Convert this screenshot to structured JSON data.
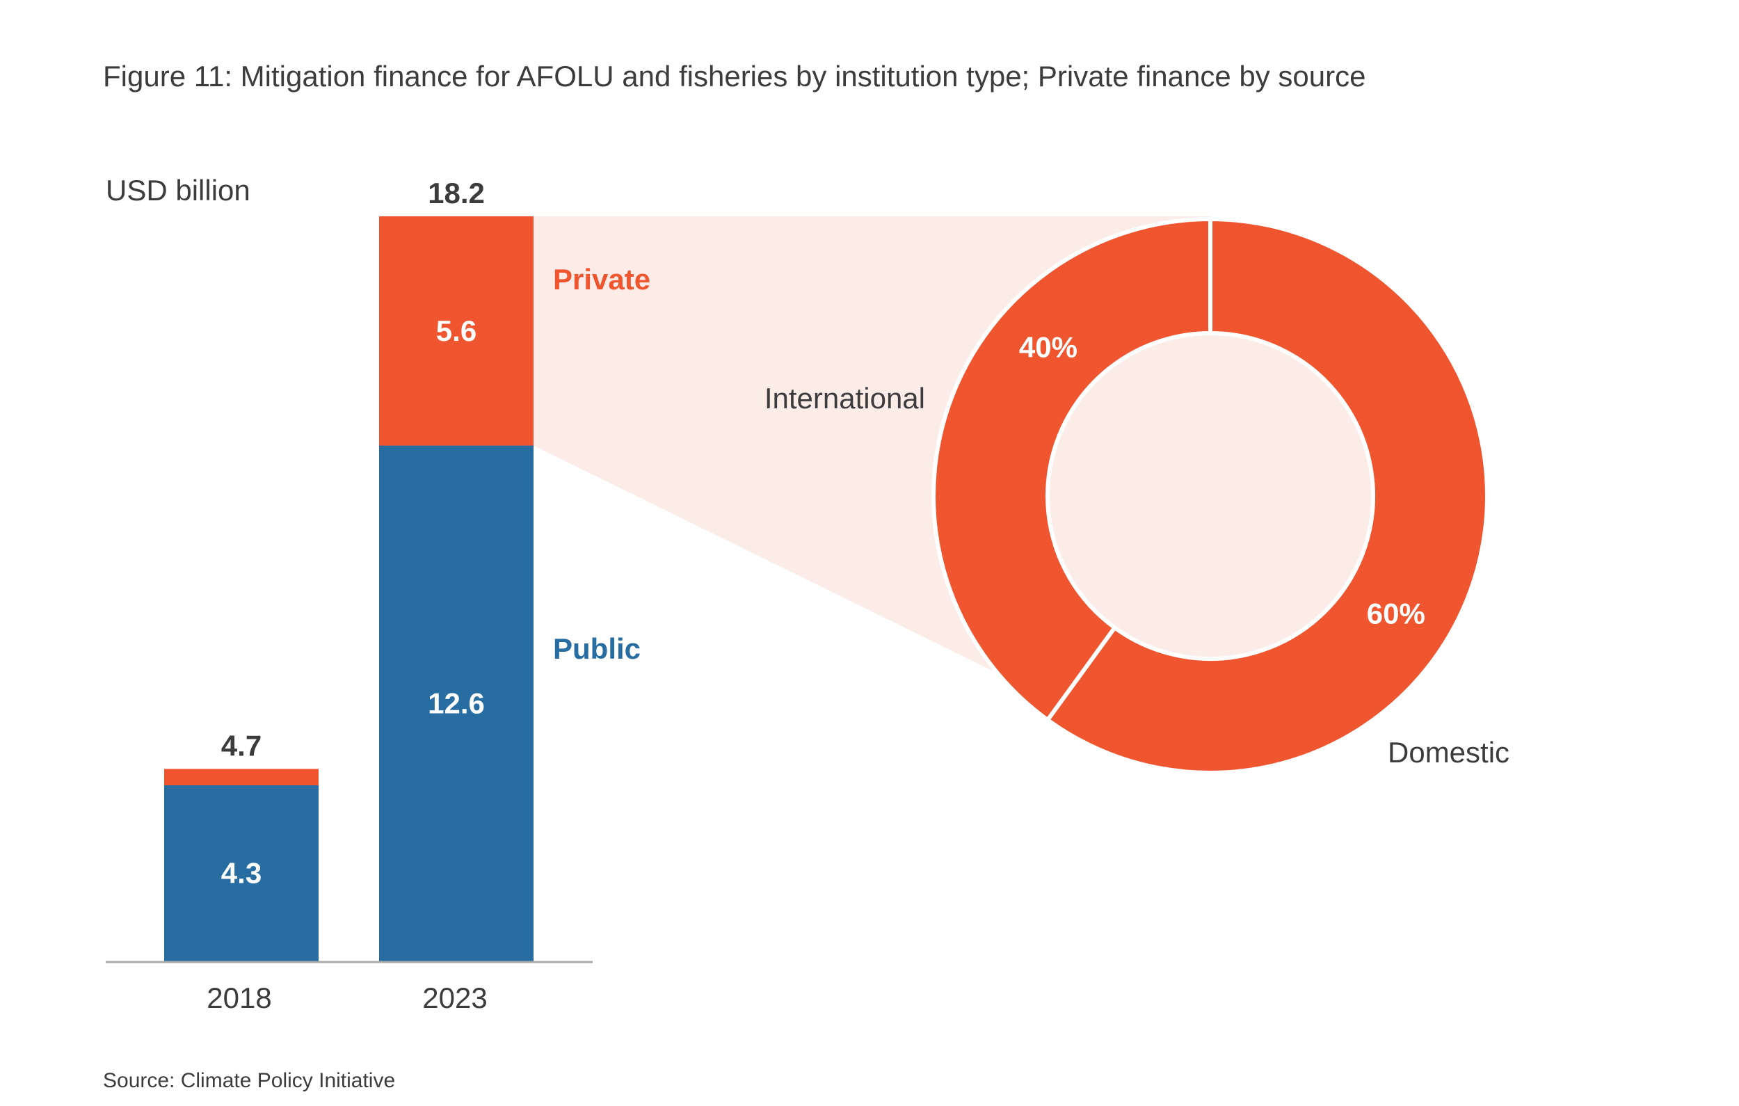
{
  "figure": {
    "title": "Figure 11: Mitigation finance for AFOLU and fisheries by institution type; Private finance by source",
    "source": "Source: Climate Policy Initiative"
  },
  "colors": {
    "public": "#276DA2",
    "private": "#EF552F",
    "callout": "#FCECE8",
    "axis": "#AAAAAA",
    "text": "#3C3C3C"
  },
  "chart_data": [
    {
      "type": "bar",
      "stacked": true,
      "unit_label": "USD billion",
      "categories": [
        "2018",
        "2023"
      ],
      "series": [
        {
          "name": "Public",
          "values": [
            4.3,
            12.6
          ],
          "value_labels": [
            "4.3",
            "12.6"
          ]
        },
        {
          "name": "Private",
          "values": [
            0.4,
            5.6
          ],
          "value_labels": [
            "",
            "5.6"
          ]
        }
      ],
      "totals": [
        4.7,
        18.2
      ],
      "total_labels": [
        "4.7",
        "18.2"
      ],
      "ylim": [
        0,
        18.2
      ],
      "grid": false,
      "legend": "labels to the right of the 2023 bar"
    },
    {
      "type": "pie",
      "donut": true,
      "subject": "Private",
      "slices": [
        {
          "name": "International",
          "value": 40,
          "label": "40%"
        },
        {
          "name": "Domestic",
          "value": 60,
          "label": "60%"
        }
      ]
    }
  ]
}
